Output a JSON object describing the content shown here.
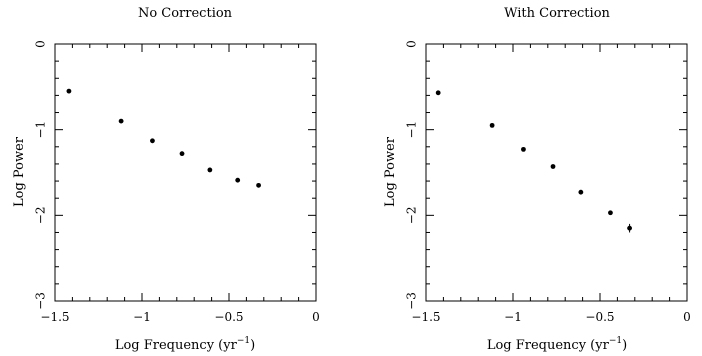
{
  "chart_data": [
    {
      "type": "scatter",
      "title": "No Correction",
      "xlabel": "Log Frequency (yr",
      "xlabel_sup": "−1",
      "xlabel_end": ")",
      "ylabel": "Log Power",
      "xlim": [
        -1.5,
        0
      ],
      "ylim": [
        -3,
        0
      ],
      "xticks": [
        -1.5,
        -1,
        -0.5,
        0
      ],
      "xtick_labels": [
        "−1.5",
        "−1",
        "−0.5",
        "0"
      ],
      "yticks": [
        -3,
        -2,
        -1,
        0
      ],
      "ytick_labels": [
        "−3",
        "−2",
        "−1",
        "0"
      ],
      "series": [
        {
          "x": [
            -1.42,
            -1.12,
            -0.94,
            -0.77,
            -0.61,
            -0.45,
            -0.33
          ],
          "y": [
            -0.55,
            -0.9,
            -1.13,
            -1.28,
            -1.47,
            -1.59,
            -1.65
          ],
          "yerr": [
            0,
            0,
            0,
            0,
            0,
            0,
            0
          ]
        }
      ]
    },
    {
      "type": "scatter",
      "title": "With Correction",
      "xlabel": "Log Frequency (yr",
      "xlabel_sup": "−1",
      "xlabel_end": ")",
      "ylabel": "Log Power",
      "xlim": [
        -1.5,
        0
      ],
      "ylim": [
        -3,
        0
      ],
      "xticks": [
        -1.5,
        -1,
        -0.5,
        0
      ],
      "xtick_labels": [
        "−1.5",
        "−1",
        "−0.5",
        "0"
      ],
      "yticks": [
        -3,
        -2,
        -1,
        0
      ],
      "ytick_labels": [
        "−3",
        "−2",
        "−1",
        "0"
      ],
      "series": [
        {
          "x": [
            -1.43,
            -1.12,
            -0.94,
            -0.77,
            -0.61,
            -0.44,
            -0.33
          ],
          "y": [
            -0.57,
            -0.95,
            -1.23,
            -1.43,
            -1.73,
            -1.97,
            -2.15
          ],
          "yerr": [
            0,
            0,
            0,
            0,
            0,
            0.02,
            0.05
          ]
        }
      ]
    }
  ]
}
